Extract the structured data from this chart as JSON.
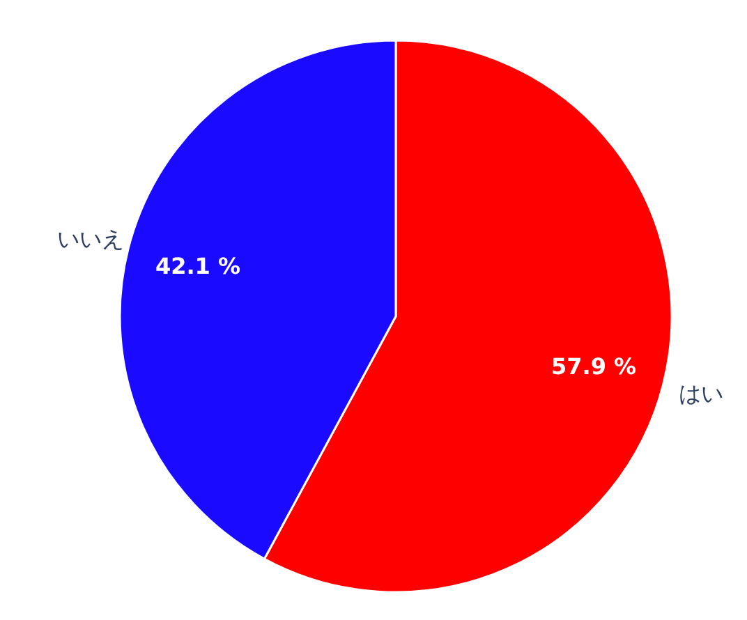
{
  "chart_data": {
    "type": "pie",
    "categories": [
      "はい",
      "いいえ"
    ],
    "values": [
      57.9,
      42.1
    ],
    "colors": [
      "#ff0000",
      "#1a0aff"
    ],
    "value_labels": [
      "57.9 %",
      "42.1 %"
    ],
    "legend": false
  }
}
